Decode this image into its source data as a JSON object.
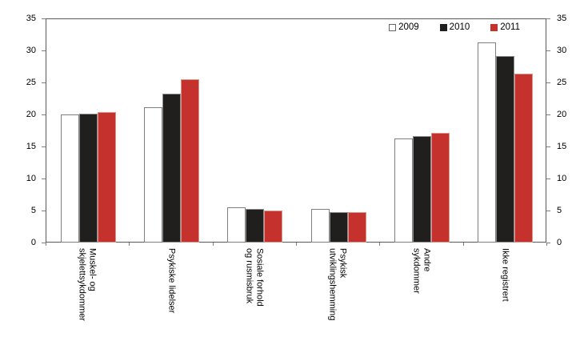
{
  "chart_data": {
    "type": "bar",
    "title": "",
    "xlabel": "",
    "ylabel": "",
    "ylim": [
      0,
      35
    ],
    "yticks": [
      0,
      5,
      10,
      15,
      20,
      25,
      30,
      35
    ],
    "grid": false,
    "legend_position": "top-right-inside",
    "dual_y_axis": true,
    "categories": [
      [
        "Muskel- og",
        "skjelettsykdommer"
      ],
      [
        "Psykiske lidelser"
      ],
      [
        "Sosiale forhold",
        "og rusmisbruk"
      ],
      [
        "Psykisk",
        "utviklingshemming"
      ],
      [
        "Andre",
        "sykdommer"
      ],
      [
        "Ikke registrert"
      ]
    ],
    "series": [
      {
        "name": "2009",
        "fill": "#ffffff",
        "stroke": "#7f7f7f",
        "values": [
          20.0,
          21.1,
          5.5,
          5.2,
          16.3,
          31.2
        ]
      },
      {
        "name": "2010",
        "fill": "#211e1e",
        "stroke": "#8c8c8c",
        "values": [
          20.1,
          23.3,
          5.3,
          4.8,
          16.6,
          29.1
        ]
      },
      {
        "name": "2011",
        "fill": "#c5322e",
        "stroke": "#d8968a",
        "values": [
          20.4,
          25.5,
          5.0,
          4.8,
          17.1,
          26.4
        ]
      }
    ]
  },
  "colors": {
    "axis": "#5a5a5a",
    "tick": "#7f7f7f",
    "series_2009": "#ffffff",
    "series_2010": "#211e1e",
    "series_2011": "#c5322e",
    "background": "#ffffff"
  }
}
